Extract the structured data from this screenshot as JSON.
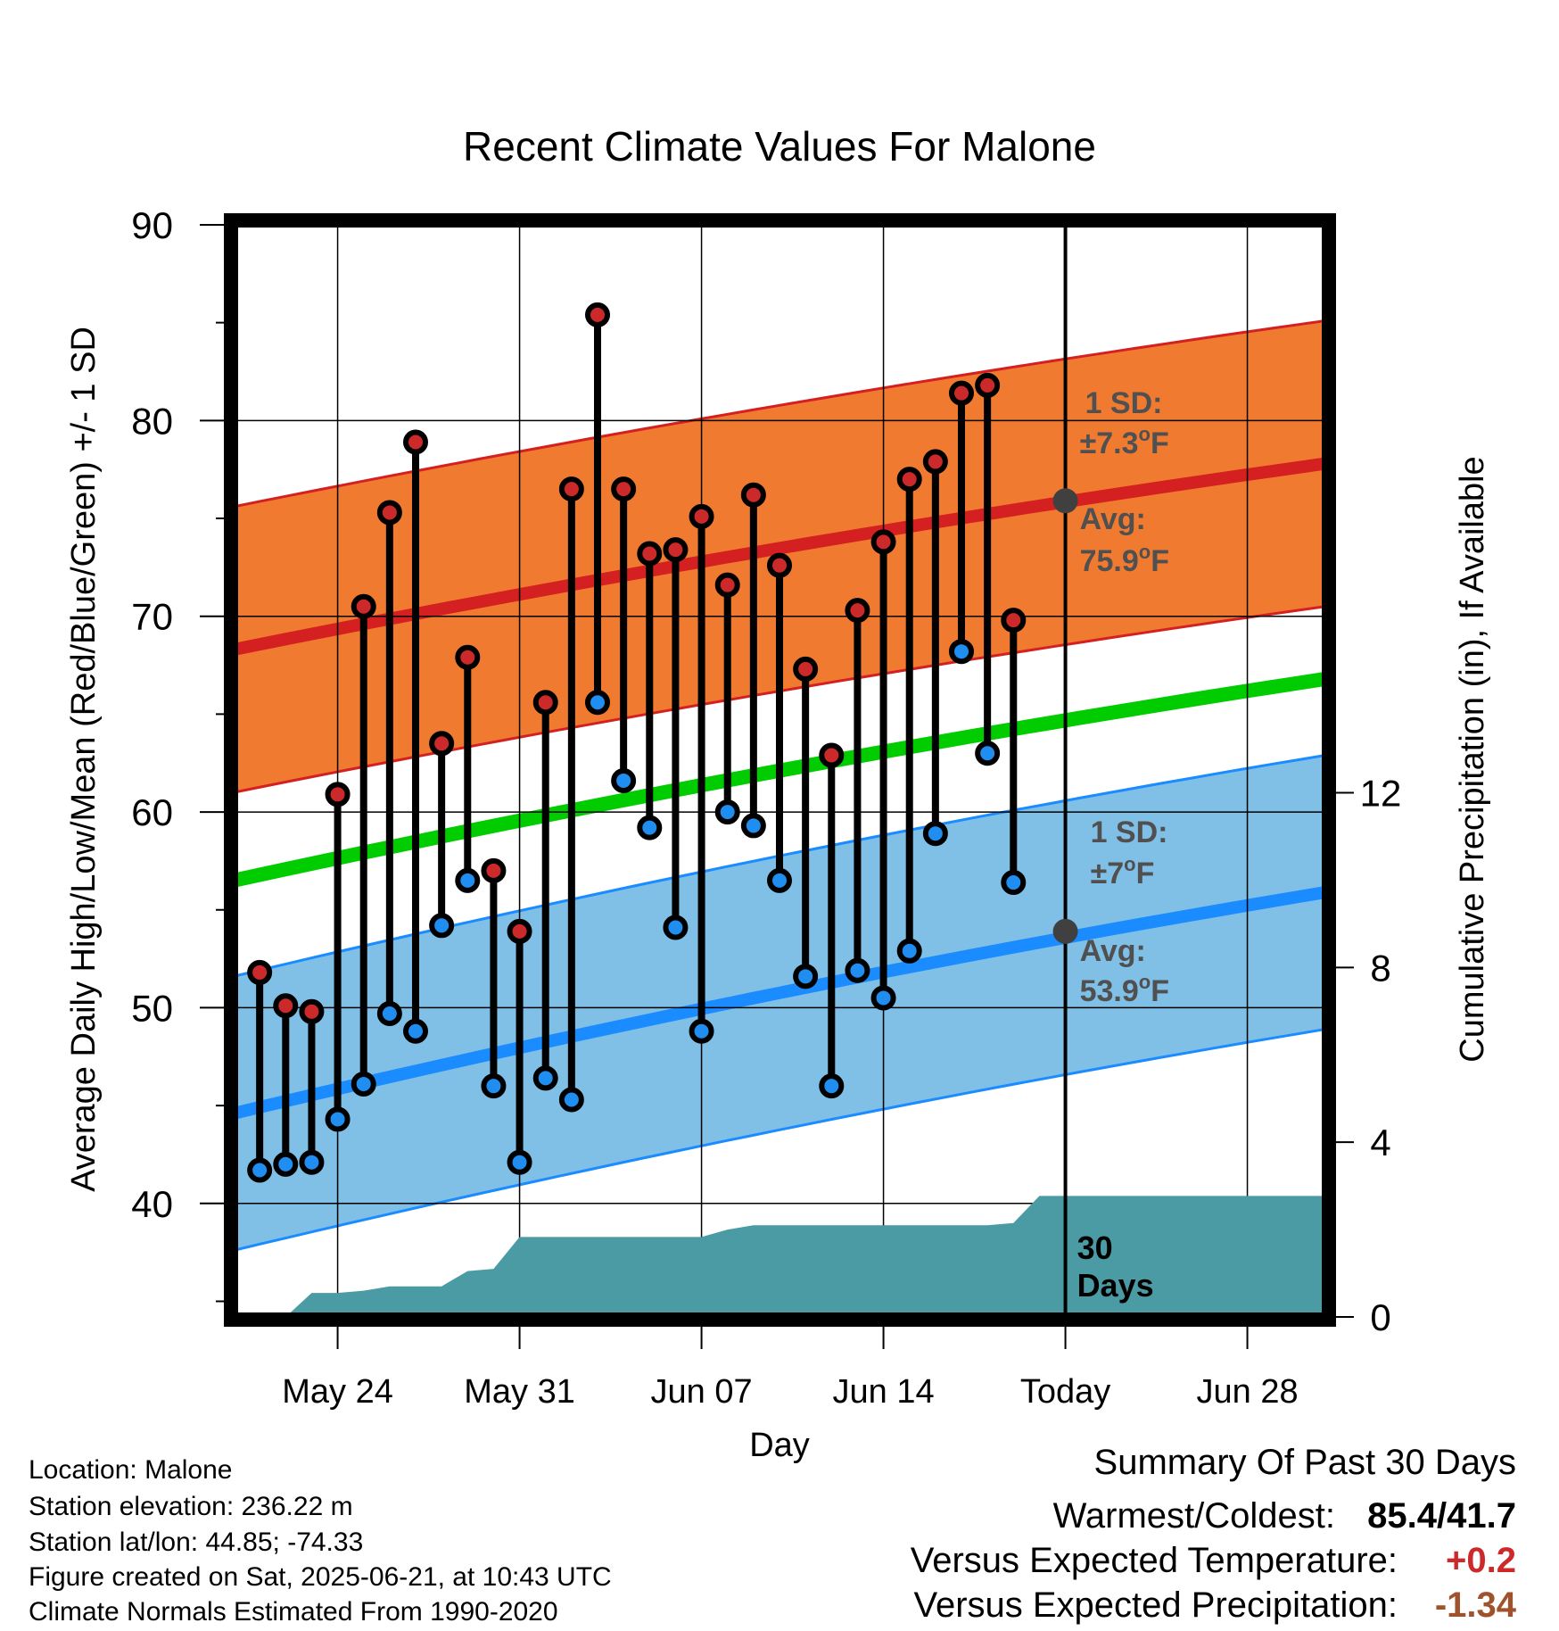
{
  "chart_data": {
    "type": "line",
    "title": "Recent Climate Values For Malone",
    "xlabel": "Day",
    "ylabel": "Average Daily High/Low/Mean (Red/Blue/Green) +/- 1 SD",
    "y2label": "Cumulative Precipitation (in), If Available",
    "ylim": [
      34.2,
      90
    ],
    "y2lim": [
      0,
      25
    ],
    "yticks": [
      40,
      50,
      60,
      70,
      80,
      90
    ],
    "y2ticks": [
      0,
      4,
      8,
      12
    ],
    "x_start_date": "May 20",
    "x_end_date": "Jul 1",
    "xticks": [
      {
        "date": "May 24",
        "label": "May 24"
      },
      {
        "date": "May 31",
        "label": "May 31"
      },
      {
        "date": "Jun 07",
        "label": "Jun 07"
      },
      {
        "date": "Jun 14",
        "label": "Jun 14"
      },
      {
        "date": "Jun 21",
        "label": "Today"
      },
      {
        "date": "Jun 28",
        "label": "Jun 28"
      }
    ],
    "today": "Jun 21",
    "grid": true,
    "normals": {
      "high_avg": [
        [
          68.3,
          77.8
        ]
      ],
      "high_sd": 7.3,
      "low_avg": [
        [
          44.6,
          55.9
        ]
      ],
      "low_sd": 7.0,
      "mean_avg": [
        [
          56.5,
          66.8
        ]
      ]
    },
    "normals_dates": [
      "May 20",
      "Jul 1"
    ],
    "daily": {
      "dates": [
        "May 21",
        "May 22",
        "May 23",
        "May 24",
        "May 25",
        "May 26",
        "May 27",
        "May 28",
        "May 29",
        "May 30",
        "May 31",
        "Jun 01",
        "Jun 02",
        "Jun 03",
        "Jun 04",
        "Jun 05",
        "Jun 06",
        "Jun 07",
        "Jun 08",
        "Jun 09",
        "Jun 10",
        "Jun 11",
        "Jun 12",
        "Jun 13",
        "Jun 14",
        "Jun 15",
        "Jun 16",
        "Jun 17",
        "Jun 18",
        "Jun 19",
        "Jun 20"
      ],
      "high": [
        51.8,
        50.1,
        49.8,
        60.9,
        70.5,
        75.3,
        78.9,
        63.5,
        67.9,
        57.0,
        53.9,
        65.6,
        76.5,
        85.4,
        76.5,
        73.2,
        73.4,
        75.1,
        71.6,
        76.2,
        72.6,
        67.3,
        62.9,
        70.3,
        73.8,
        77.0,
        77.9,
        81.4,
        81.8,
        69.8,
        null
      ],
      "low": [
        41.7,
        42.0,
        42.1,
        44.3,
        46.1,
        49.7,
        48.8,
        54.2,
        56.5,
        46.0,
        42.1,
        46.4,
        45.3,
        65.6,
        61.6,
        59.2,
        54.1,
        48.8,
        60.0,
        59.3,
        56.5,
        51.6,
        46.0,
        51.9,
        50.5,
        52.9,
        58.9,
        68.2,
        63.0,
        56.4,
        null
      ],
      "high_color": "#cc2a2a",
      "low_color": "#1f8ef0"
    },
    "precip": {
      "dates": [
        "May 22",
        "May 23",
        "May 24",
        "May 25",
        "May 26",
        "May 27",
        "May 28",
        "May 29",
        "May 30",
        "May 31",
        "Jun 07",
        "Jun 08",
        "Jun 09",
        "Jun 18",
        "Jun 19",
        "Jun 20",
        "Jul 1"
      ],
      "cumulative": [
        0,
        0.55,
        0.55,
        0.6,
        0.7,
        0.7,
        0.7,
        1.05,
        1.1,
        1.83,
        1.83,
        2.0,
        2.1,
        2.1,
        2.15,
        2.77,
        2.77
      ]
    },
    "annotations": {
      "high_sd": "1 SD:",
      "high_sd_value": "±7.3",
      "high_avg": "Avg:",
      "high_avg_value": "75.9",
      "low_sd": "1 SD:",
      "low_sd_value": "±7",
      "low_avg": "Avg:",
      "low_avg_value": "53.9",
      "unit": "F",
      "degree": "o",
      "days_line1": "30",
      "days_line2": "Days"
    },
    "colors": {
      "high_band": "#f07a30",
      "high_line": "#d42020",
      "low_band": "#80bfe6",
      "low_line": "#1a8cff",
      "mean_line": "#00cc00",
      "precip": "#4a9ba3",
      "marker_point": "#404040"
    }
  },
  "info": [
    "Location: Malone",
    "Station elevation: 236.22 m",
    "Station lat/lon: 44.85; -74.33",
    "Figure created on Sat, 2025-06-21, at 10:43 UTC",
    "Climate Normals Estimated From 1990-2020"
  ],
  "summary": {
    "heading": "Summary Of Past 30 Days",
    "warm_cold_label": "Warmest/Coldest:",
    "warm_cold_value": "85.4/41.7",
    "temp_label": "Versus Expected Temperature:",
    "temp_value": "+0.2",
    "temp_color": "#cc2a2a",
    "precip_label": "Versus Expected Precipitation:",
    "precip_value": "-1.34",
    "precip_color": "#a0522d"
  }
}
